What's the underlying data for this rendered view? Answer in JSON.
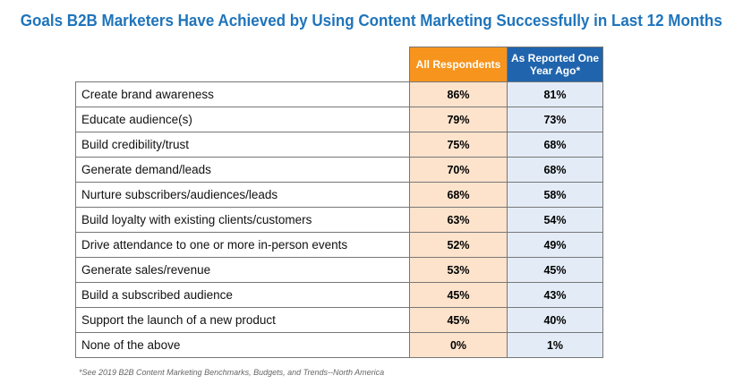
{
  "chart_data": {
    "type": "table",
    "title": "Goals B2B Marketers Have Achieved by Using Content Marketing Successfully in Last 12 Months",
    "columns": [
      "All Respondents",
      "As Reported One Year Ago*"
    ],
    "column_colors": [
      "#f7941d",
      "#1f64ad"
    ],
    "rows": [
      {
        "label": "Create brand awareness",
        "values": [
          "86%",
          "81%"
        ]
      },
      {
        "label": "Educate audience(s)",
        "values": [
          "79%",
          "73%"
        ]
      },
      {
        "label": "Build credibility/trust",
        "values": [
          "75%",
          "68%"
        ]
      },
      {
        "label": "Generate demand/leads",
        "values": [
          "70%",
          "68%"
        ]
      },
      {
        "label": "Nurture subscribers/audiences/leads",
        "values": [
          "68%",
          "58%"
        ]
      },
      {
        "label": "Build loyalty with existing clients/customers",
        "values": [
          "63%",
          "54%"
        ]
      },
      {
        "label": "Drive attendance to one or more in-person events",
        "values": [
          "52%",
          "49%"
        ]
      },
      {
        "label": "Generate sales/revenue",
        "values": [
          "53%",
          "45%"
        ]
      },
      {
        "label": "Build a subscribed audience",
        "values": [
          "45%",
          "43%"
        ]
      },
      {
        "label": "Support the launch of a new product",
        "values": [
          "45%",
          "40%"
        ]
      },
      {
        "label": "None of the above",
        "values": [
          "0%",
          "1%"
        ]
      }
    ],
    "footnote": "*See 2019 B2B Content Marketing Benchmarks, Budgets, and Trends--North America"
  }
}
